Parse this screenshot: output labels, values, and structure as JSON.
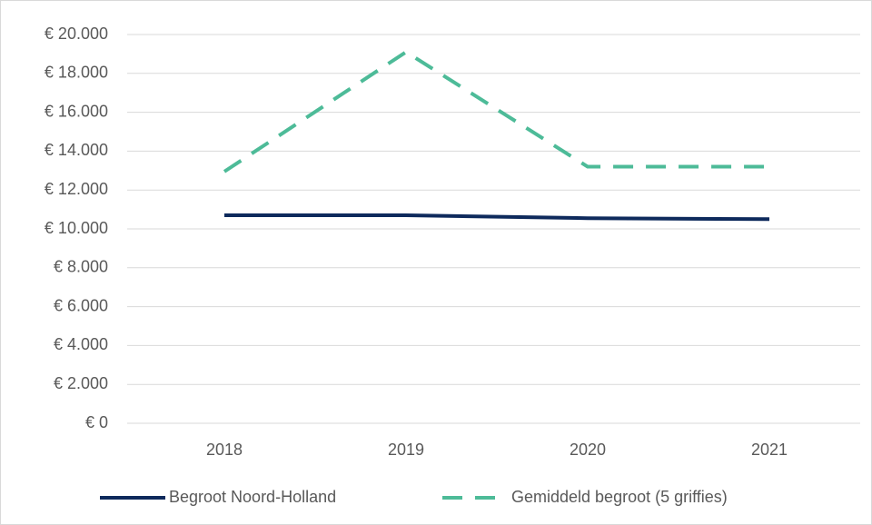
{
  "chart_data": {
    "type": "line",
    "categories": [
      "2018",
      "2019",
      "2020",
      "2021"
    ],
    "series": [
      {
        "name": "Begroot Noord-Holland",
        "color": "#0e2a5c",
        "dash": "solid",
        "values": [
          10700,
          10700,
          10550,
          10500
        ]
      },
      {
        "name": "Gemiddeld begroot (5 griffies)",
        "color": "#4dbb98",
        "dash": "dashed",
        "values": [
          12950,
          19100,
          13200,
          13200
        ]
      }
    ],
    "ylim": [
      0,
      20000
    ],
    "yticks": [
      {
        "value": 0,
        "label": "€ 0"
      },
      {
        "value": 2000,
        "label": "€ 2.000"
      },
      {
        "value": 4000,
        "label": "€ 4.000"
      },
      {
        "value": 6000,
        "label": "€ 6.000"
      },
      {
        "value": 8000,
        "label": "€ 8.000"
      },
      {
        "value": 10000,
        "label": "€ 10.000"
      },
      {
        "value": 12000,
        "label": "€ 12.000"
      },
      {
        "value": 14000,
        "label": "€ 14.000"
      },
      {
        "value": 16000,
        "label": "€ 16.000"
      },
      {
        "value": 18000,
        "label": "€ 18.000"
      },
      {
        "value": 20000,
        "label": "€ 20.000"
      }
    ],
    "grid": true,
    "legend": "bottom"
  }
}
